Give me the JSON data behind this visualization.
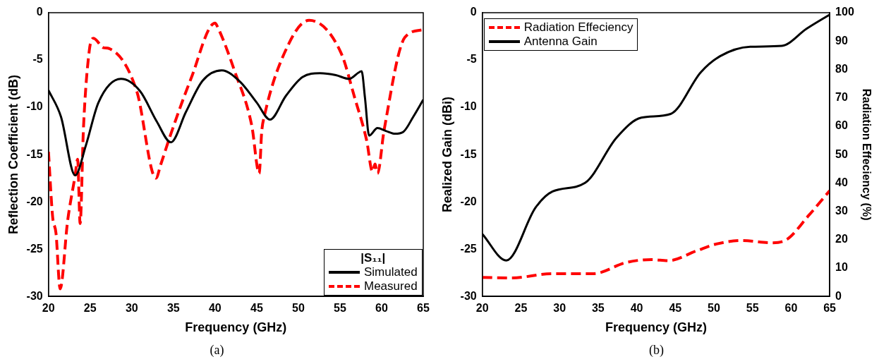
{
  "chart_data": [
    {
      "type": "line",
      "xlabel": "Frequency (GHz)",
      "ylabel": "Reflection Coefficient (dB)",
      "legend_title": "|S₁₁|",
      "legend": "bottom right",
      "xlim": [
        20,
        65
      ],
      "xticks": [
        20,
        25,
        30,
        35,
        40,
        45,
        50,
        55,
        60,
        65
      ],
      "ylim": [
        -30,
        0
      ],
      "yticks": [
        -30,
        -25,
        -20,
        -15,
        -10,
        -5,
        0
      ],
      "annotations": [
        "(a)"
      ],
      "series": [
        {
          "name": "Simulated",
          "color": "#000000",
          "line_style": "solid",
          "x": [
            20,
            21.5,
            23.2,
            24.5,
            26,
            28.7,
            31,
            33,
            34.7,
            36.5,
            38.5,
            40.8,
            43,
            45,
            46.6,
            48.5,
            50.5,
            52.6,
            54.5,
            56.1,
            57.6,
            58,
            58.5,
            59.5,
            60.5,
            61.6,
            62.6,
            63.8,
            65
          ],
          "values": [
            -8.2,
            -11,
            -17.2,
            -14,
            -9.5,
            -7.0,
            -8.3,
            -11.5,
            -13.7,
            -10.5,
            -7.2,
            -6.1,
            -7.3,
            -9.5,
            -11.3,
            -8.8,
            -6.8,
            -6.4,
            -6.6,
            -7.0,
            -6.2,
            -9,
            -13.0,
            -12.2,
            -12.5,
            -12.8,
            -12.6,
            -11,
            -9.2
          ]
        },
        {
          "name": "Measured",
          "color": "#ff0000",
          "line_style": "dashed",
          "x": [
            20,
            20.5,
            20.9,
            21.4,
            22.3,
            23.2,
            23.5,
            23.8,
            24.2,
            24.9,
            25.4,
            26.6,
            27.3,
            30.6,
            32.9,
            33.5,
            34.7,
            37.1,
            40.0,
            40.3,
            42.4,
            44.4,
            45.3,
            45.6,
            45.9,
            48.9,
            51.3,
            55.1,
            56.8,
            58.2,
            58.9,
            59.2,
            59.5,
            60.3,
            62.8,
            65
          ],
          "values": [
            -14.7,
            -21.6,
            -23.3,
            -29.2,
            -22,
            -17.2,
            -15.5,
            -22.3,
            -12.2,
            -4,
            -2.7,
            -3.7,
            -3.8,
            -8.3,
            -17.5,
            -16,
            -12.8,
            -7.0,
            -1.1,
            -1.5,
            -6.3,
            -11.9,
            -17.0,
            -12.6,
            -11,
            -3.2,
            -0.8,
            -4.2,
            -9.1,
            -13.5,
            -16.8,
            -16,
            -17,
            -12.4,
            -2.6,
            -1.8
          ]
        }
      ]
    },
    {
      "type": "line",
      "xlabel": "Frequency (GHz)",
      "ylabel": "Realized Gain (dBi)",
      "y2label": "Radiation Effeciency (%)",
      "legend": "top left",
      "xlim": [
        20,
        65
      ],
      "xticks": [
        20,
        25,
        30,
        35,
        40,
        45,
        50,
        55,
        60,
        65
      ],
      "ylim": [
        -30,
        0
      ],
      "yticks": [
        -30,
        -25,
        -20,
        -15,
        -10,
        -5,
        0
      ],
      "y2lim": [
        0,
        100
      ],
      "y2ticks": [
        0,
        10,
        20,
        30,
        40,
        50,
        60,
        70,
        80,
        90,
        100
      ],
      "annotations": [
        "(b)"
      ],
      "series": [
        {
          "name": "Radiation Effeciency",
          "color": "#ff0000",
          "line_style": "dashed",
          "axis": "y2",
          "x": [
            20,
            23.7,
            29.1,
            34.3,
            38.7,
            41.9,
            44.1,
            47.7,
            50.2,
            53.7,
            57.3,
            59.2,
            62.3,
            65
          ],
          "values": [
            6.7,
            6.5,
            8,
            8,
            12,
            13,
            12.6,
            16,
            18.4,
            19.7,
            18.9,
            19.7,
            28.6,
            37.3
          ]
        },
        {
          "name": "Antenna Gain",
          "color": "#000000",
          "line_style": "solid",
          "axis": "y",
          "x": [
            20,
            23.1,
            26.9,
            29.1,
            33.3,
            37.4,
            40.6,
            44.4,
            48.3,
            50.8,
            54.7,
            58.8,
            62,
            65
          ],
          "values": [
            -23.4,
            -26.2,
            -20.6,
            -18.9,
            -18.0,
            -13.2,
            -11.1,
            -10.7,
            -6.3,
            -4.6,
            -3.6,
            -3.5,
            -1.7,
            -0.2
          ]
        }
      ]
    }
  ]
}
